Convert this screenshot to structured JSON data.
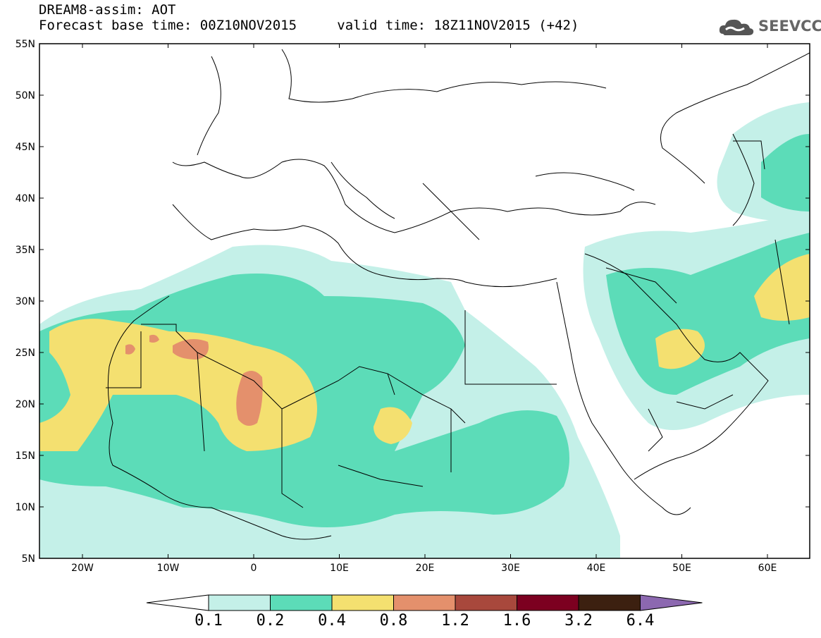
{
  "header": {
    "title": "DREAM8-assim: AOT",
    "base_time": "Forecast base time: 00Z10NOV2015",
    "valid_time": "valid time: 18Z11NOV2015 (+42)",
    "logo_text": "SEEVCCC"
  },
  "map": {
    "lat_ticks": [
      "55N",
      "50N",
      "45N",
      "40N",
      "35N",
      "30N",
      "25N",
      "20N",
      "15N",
      "10N",
      "5N"
    ],
    "lon_ticks": [
      "20W",
      "10W",
      "0",
      "10E",
      "20E",
      "30E",
      "40E",
      "50E",
      "60E"
    ],
    "region": "North Africa, Middle East, Europe"
  },
  "colorbar": {
    "labels": [
      "0.1",
      "0.2",
      "0.4",
      "0.8",
      "1.2",
      "1.6",
      "3.2",
      "6.4"
    ],
    "colors": [
      "#ffffff",
      "#c4f0e8",
      "#5cdcb8",
      "#f4e070",
      "#e4906c",
      "#a8483c",
      "#7c0020",
      "#3c2010",
      "#8c68b0"
    ]
  },
  "colors": {
    "level1": "#c4f0e8",
    "level2": "#5cdcb8",
    "level3": "#f4e070",
    "level4": "#e4906c"
  }
}
